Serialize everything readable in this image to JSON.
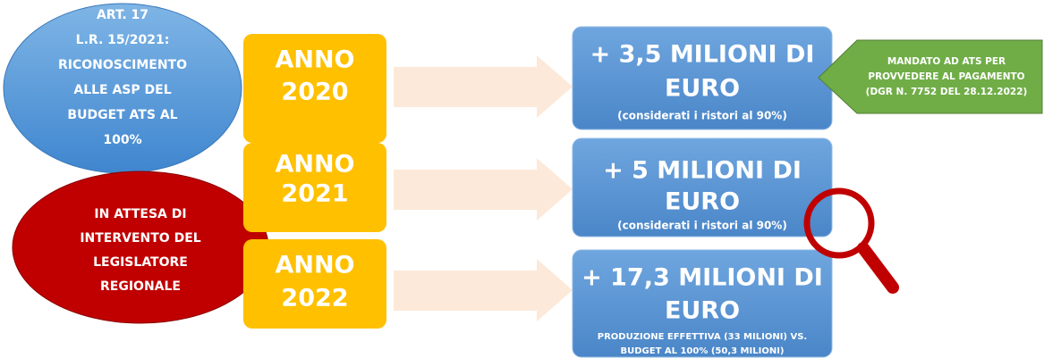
{
  "left_notes": [
    {
      "lines": [
        "ART. 17",
        "L.R. 15/2021:",
        "RICONOSCIMENTO",
        "ALLE ASP DEL",
        "BUDGET ATS AL",
        "100%"
      ]
    },
    {
      "lines": [
        "IN ATTESA DI",
        "INTERVENTO DEL",
        "LEGISLATORE",
        "REGIONALE"
      ]
    }
  ],
  "years": [
    {
      "lines": [
        "ANNO",
        "2020"
      ]
    },
    {
      "lines": [
        "ANNO",
        "2021"
      ]
    },
    {
      "lines": [
        "ANNO",
        "2022"
      ]
    }
  ],
  "amounts": [
    {
      "lines": [
        "+ 3,5 MILIONI DI",
        "EURO"
      ],
      "note": [
        "(considerati i ristori al 90%)"
      ]
    },
    {
      "lines": [
        "+ 5 MILIONI DI",
        "EURO"
      ],
      "note": [
        "(considerati i ristori al 90%)"
      ]
    },
    {
      "lines": [
        "+ 17,3 MILIONI DI",
        "EURO"
      ],
      "note": [
        "PRODUZIONE EFFETTIVA (33 MILIONI) VS.",
        "BUDGET AL 100% (50,3 MILIONI)"
      ]
    }
  ],
  "callout": {
    "lines": [
      "MANDATO AD ATS PER",
      "PROVVEDERE AL PAGAMENTO",
      "(DGR N. 7752 DEL 28.12.2022)"
    ]
  }
}
